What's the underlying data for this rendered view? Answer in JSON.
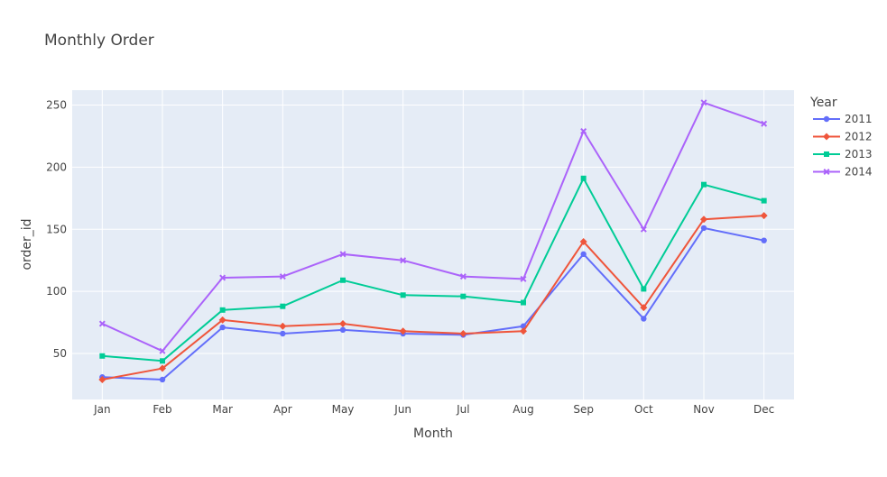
{
  "chart_data": {
    "type": "line",
    "title": "Monthly Order",
    "xlabel": "Month",
    "ylabel": "order_id",
    "categories": [
      "Jan",
      "Feb",
      "Mar",
      "Apr",
      "May",
      "Jun",
      "Jul",
      "Aug",
      "Sep",
      "Oct",
      "Nov",
      "Dec"
    ],
    "ylim": [
      13,
      262
    ],
    "yticks": [
      50,
      100,
      150,
      200,
      250
    ],
    "grid": true,
    "legend_title": "Year",
    "legend_position": "right",
    "series": [
      {
        "name": "2011",
        "color": "#636efa",
        "marker": "circle",
        "values": [
          31,
          29,
          71,
          66,
          69,
          66,
          65,
          72,
          130,
          78,
          151,
          141
        ]
      },
      {
        "name": "2012",
        "color": "#EF553B",
        "marker": "diamond",
        "values": [
          29,
          38,
          77,
          72,
          74,
          68,
          66,
          68,
          140,
          87,
          158,
          161
        ]
      },
      {
        "name": "2013",
        "color": "#00cc96",
        "marker": "square",
        "values": [
          48,
          44,
          85,
          88,
          109,
          97,
          96,
          91,
          191,
          102,
          186,
          173
        ]
      },
      {
        "name": "2014",
        "color": "#ab63fa",
        "marker": "x",
        "values": [
          74,
          52,
          111,
          112,
          130,
          125,
          112,
          110,
          229,
          150,
          252,
          235
        ]
      }
    ],
    "plot_bg": "#E5ECF6",
    "grid_color": "#ffffff"
  }
}
